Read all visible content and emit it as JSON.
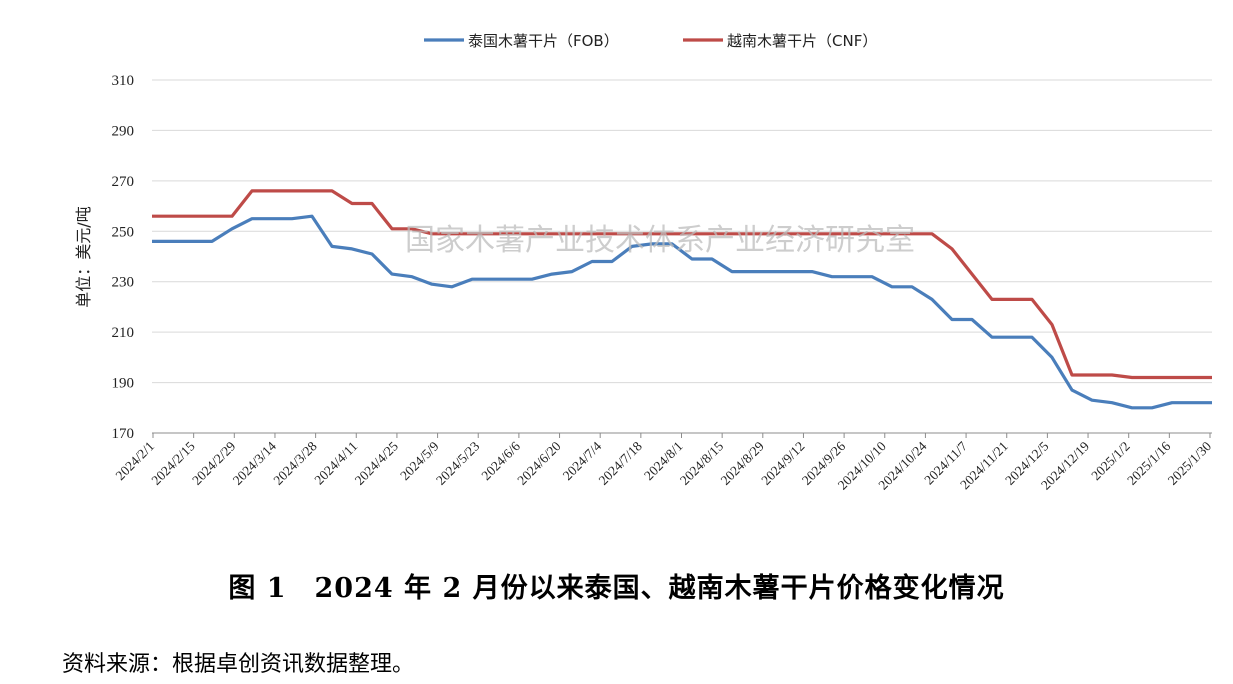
{
  "chart_data": {
    "type": "line",
    "title": "",
    "xlabel": "",
    "ylabel": "单位：美元/吨",
    "ylim": [
      170,
      310
    ],
    "yticks": [
      170,
      190,
      210,
      230,
      250,
      270,
      290,
      310
    ],
    "x_tick_labels": [
      "2024/2/1",
      "2024/2/15",
      "2024/2/29",
      "2024/3/14",
      "2024/3/28",
      "2024/4/11",
      "2024/4/25",
      "2024/5/9",
      "2024/5/23",
      "2024/6/6",
      "2024/6/20",
      "2024/7/4",
      "2024/7/18",
      "2024/8/1",
      "2024/8/15",
      "2024/8/29",
      "2024/9/12",
      "2024/9/26",
      "2024/10/10",
      "2024/10/24",
      "2024/11/7",
      "2024/11/21",
      "2024/12/5",
      "2024/12/19",
      "2025/1/2",
      "2025/1/16",
      "2025/1/30"
    ],
    "legend_position": "top-center",
    "grid": true,
    "series": [
      {
        "name": "泰国木薯干片（FOB）",
        "color": "#4a7ebb",
        "values": [
          246,
          246,
          246,
          246,
          251,
          255,
          255,
          255,
          256,
          244,
          243,
          241,
          233,
          232,
          229,
          228,
          231,
          231,
          231,
          231,
          233,
          234,
          238,
          238,
          244,
          245,
          245,
          239,
          239,
          234,
          234,
          234,
          234,
          234,
          232,
          232,
          232,
          228,
          228,
          223,
          215,
          215,
          208,
          208,
          208,
          200,
          187,
          183,
          182,
          180,
          180,
          182,
          182,
          182
        ]
      },
      {
        "name": "越南木薯干片（CNF）",
        "color": "#be4b48",
        "values": [
          256,
          256,
          256,
          256,
          256,
          266,
          266,
          266,
          266,
          266,
          261,
          261,
          251,
          251,
          249,
          249,
          249,
          249,
          249,
          249,
          249,
          249,
          249,
          249,
          249,
          249,
          249,
          249,
          249,
          249,
          249,
          249,
          249,
          249,
          249,
          249,
          249,
          249,
          249,
          249,
          243,
          233,
          223,
          223,
          223,
          213,
          193,
          193,
          193,
          192,
          192,
          192,
          192,
          192
        ]
      }
    ]
  },
  "watermark": "国家木薯产业技术体系产业经济研究室",
  "caption": "图 1　2024 年 2 月份以来泰国、越南木薯干片价格变化情况",
  "source": "资料来源：根据卓创资讯数据整理。"
}
